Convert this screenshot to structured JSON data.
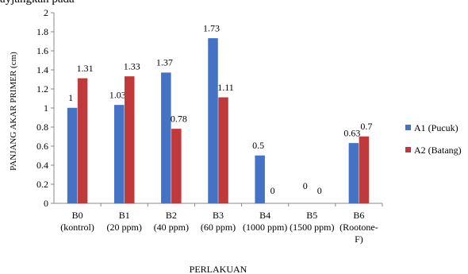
{
  "page": {
    "header_fragment": "ayjangkan pada"
  },
  "chart_data": {
    "type": "bar",
    "title": "",
    "xlabel": "PERLAKUAN",
    "ylabel": "PANJANG AKAR PRIMER  (cm)",
    "ylim": [
      0,
      2
    ],
    "ytick_step": 0.2,
    "yticks": [
      "0",
      "0.2",
      "0.4",
      "0.6",
      "0.8",
      "1",
      "1.2",
      "1.4",
      "1.6",
      "1.8",
      "2"
    ],
    "grid": false,
    "legend_position": "right",
    "categories": [
      [
        "B0",
        "(kontrol)"
      ],
      [
        "B1",
        "(20 ppm)"
      ],
      [
        "B2",
        "(40 ppm)"
      ],
      [
        "B3",
        "(60 ppm)"
      ],
      [
        "B4",
        "(1000 ppm)"
      ],
      [
        "B5",
        "(1500 ppm)"
      ],
      [
        "B6",
        "(Rootone-",
        "F)"
      ]
    ],
    "series": [
      {
        "name": "A1 (Pucuk)",
        "color": "#4472C4",
        "values": [
          1,
          1.03,
          1.37,
          1.73,
          0.5,
          0,
          0.63
        ],
        "labels": [
          "1",
          "1.03",
          "1.37",
          "1.73",
          "0.5",
          "0",
          "0.63"
        ]
      },
      {
        "name": "A2 (Batang)",
        "color": "#C0393B",
        "values": [
          1.31,
          1.33,
          0.78,
          1.11,
          0,
          0,
          0.7
        ],
        "labels": [
          "1.31",
          "1.33",
          "0.78",
          "1.11",
          "0",
          "0",
          "0.7"
        ]
      }
    ]
  }
}
